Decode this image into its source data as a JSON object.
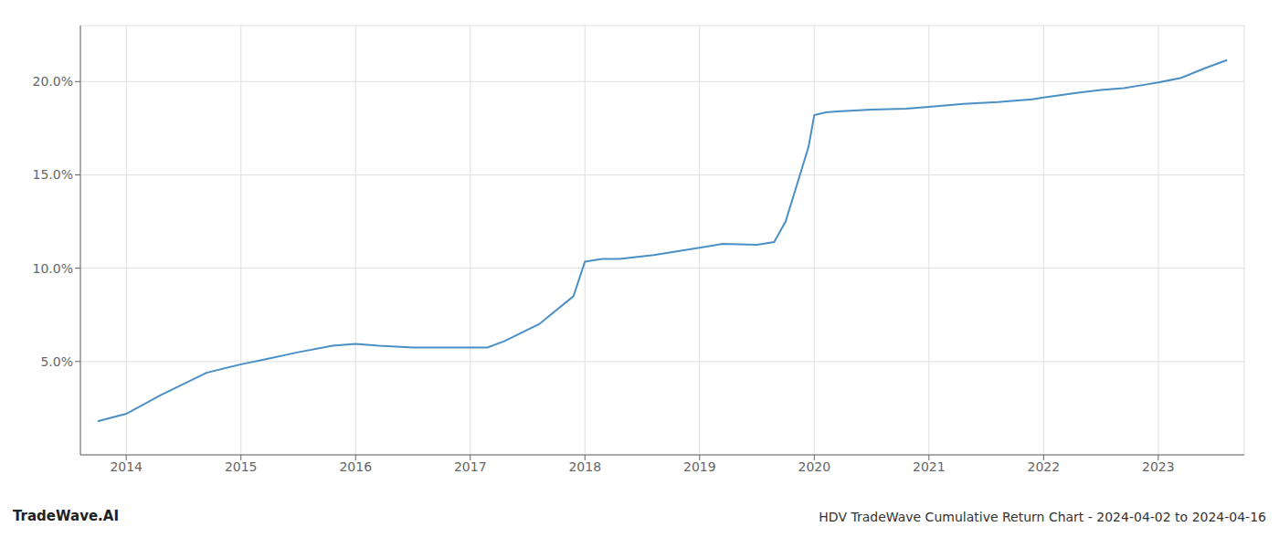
{
  "chart_data": {
    "type": "line",
    "title": "HDV TradeWave Cumulative Return Chart - 2024-04-02 to 2024-04-16",
    "annotations": [
      "TradeWave.AI"
    ],
    "x": [
      2013.75,
      2014.0,
      2014.3,
      2014.7,
      2015.0,
      2015.2,
      2015.5,
      2015.8,
      2016.0,
      2016.2,
      2016.5,
      2016.8,
      2017.0,
      2017.15,
      2017.3,
      2017.6,
      2017.9,
      2018.0,
      2018.15,
      2018.3,
      2018.6,
      2018.8,
      2019.0,
      2019.2,
      2019.5,
      2019.65,
      2019.75,
      2019.85,
      2019.95,
      2020.0,
      2020.1,
      2020.2,
      2020.5,
      2020.8,
      2021.0,
      2021.3,
      2021.6,
      2021.9,
      2022.0,
      2022.3,
      2022.5,
      2022.7,
      2022.9,
      2023.0,
      2023.2,
      2023.4,
      2023.6
    ],
    "values": [
      1.8,
      2.2,
      3.2,
      4.4,
      4.85,
      5.1,
      5.5,
      5.85,
      5.95,
      5.85,
      5.75,
      5.75,
      5.75,
      5.75,
      6.1,
      7.0,
      8.5,
      10.35,
      10.5,
      10.5,
      10.7,
      10.9,
      11.1,
      11.3,
      11.25,
      11.4,
      12.5,
      14.5,
      16.5,
      18.2,
      18.35,
      18.4,
      18.5,
      18.55,
      18.65,
      18.8,
      18.9,
      19.05,
      19.15,
      19.4,
      19.55,
      19.65,
      19.85,
      19.95,
      20.2,
      20.7,
      21.15
    ],
    "color": "#4a90c4",
    "xlim": [
      2013.6,
      2023.75
    ],
    "ylim": [
      0,
      23
    ],
    "xticks": [
      2014,
      2015,
      2016,
      2017,
      2018,
      2019,
      2020,
      2021,
      2022,
      2023
    ],
    "yticks": [
      {
        "value": 5.0,
        "label": "5.0%"
      },
      {
        "value": 10.0,
        "label": "10.0%"
      },
      {
        "value": 15.0,
        "label": "15.0%"
      },
      {
        "value": 20.0,
        "label": "20.0%"
      }
    ],
    "grid": true
  }
}
